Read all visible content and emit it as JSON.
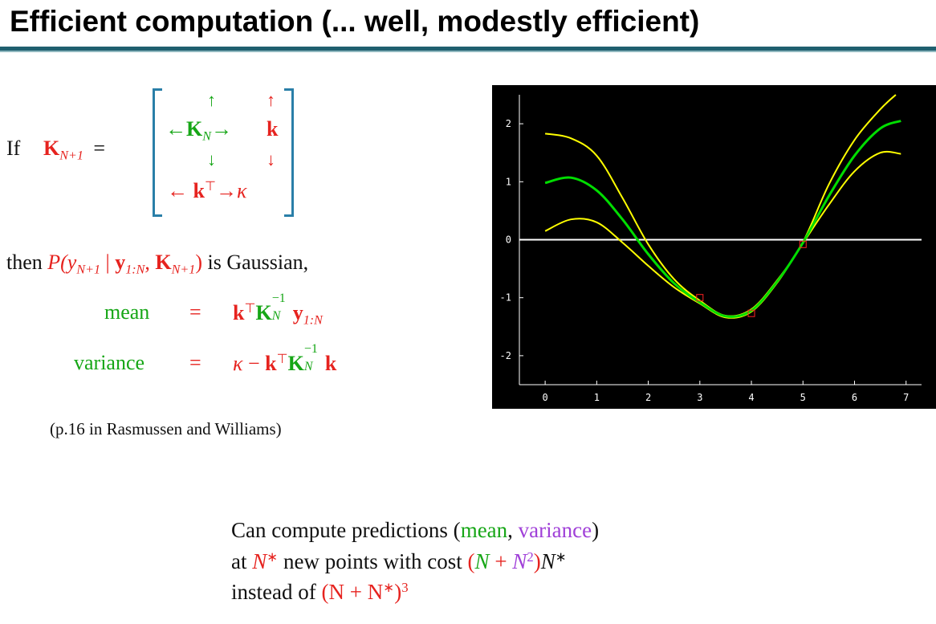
{
  "title": "Efficient computation (... well, modestly efficient)",
  "if_text": "If",
  "matrix_lhs": {
    "K": "K",
    "sub": "N+1",
    "eq": "="
  },
  "matrix": {
    "arrow_up": "↑",
    "arrow_down": "↓",
    "arrow_left": "←",
    "arrow_right": "→",
    "KN": "K",
    "KN_sub": "N",
    "k": "k",
    "kT": "k",
    "T": "⊤",
    "kappa": "κ"
  },
  "then_line": {
    "then": "then",
    "P": "P(y",
    "sub1": "N+1",
    "bar": " | ",
    "y": "y",
    "sub2": "1:N",
    "comma": ", ",
    "K": "K",
    "sub3": "N+1",
    "close": ")",
    "rest": " is Gaussian,"
  },
  "mean_line": {
    "label": "mean",
    "eq": "=",
    "k": "k",
    "T": "⊤",
    "K": "K",
    "exp": "−1",
    "sub": "N",
    "y": "y",
    "ysub": "1:N"
  },
  "variance_line": {
    "label": "variance",
    "eq": "=",
    "kappa": "κ",
    "minus": " − ",
    "k": "k",
    "T": "⊤",
    "K": "K",
    "exp": "−1",
    "sub": "N",
    "k2": "k"
  },
  "reference": "(p.16 in Rasmussen and Williams)",
  "bottom_text": {
    "line1_a": "Can compute predictions (",
    "mean": "mean",
    "comma": ", ",
    "variance": "variance",
    "line1_b": ")",
    "line2_a": "at ",
    "Nstar": "N",
    "star": "∗",
    "line2_b": " new points with cost ",
    "paren_open": "(",
    "N1": "N",
    "plus": " + ",
    "N2": "N",
    "sq": "2",
    "paren_close": ")",
    "N3": "N",
    "star2": "∗",
    "line3_a": "instead of ",
    "cost2_a": "(N + N",
    "star3": "∗",
    "cost2_b": ")",
    "cube": "3"
  },
  "chart_data": {
    "type": "line",
    "xlim": [
      -0.5,
      7.3
    ],
    "ylim": [
      -2.5,
      2.5
    ],
    "x_ticks": [
      "0",
      "1",
      "2",
      "3",
      "4",
      "5",
      "6",
      "7"
    ],
    "y_ticks": [
      "2",
      "1",
      "0",
      "-1",
      "-2"
    ],
    "grid": false,
    "colors": {
      "mean": "#00dd00",
      "bounds": "#ffff00",
      "zero": "#ffffff",
      "points": "#ff2222",
      "axis": "#ffffff"
    },
    "mean": [
      {
        "x": 0,
        "y": 0.98
      },
      {
        "x": 0.5,
        "y": 1.07
      },
      {
        "x": 1,
        "y": 0.85
      },
      {
        "x": 1.5,
        "y": 0.35
      },
      {
        "x": 2,
        "y": -0.25
      },
      {
        "x": 2.5,
        "y": -0.75
      },
      {
        "x": 3,
        "y": -1.08
      },
      {
        "x": 3.5,
        "y": -1.32
      },
      {
        "x": 4,
        "y": -1.22
      },
      {
        "x": 4.5,
        "y": -0.72
      },
      {
        "x": 5,
        "y": -0.05
      },
      {
        "x": 5.5,
        "y": 0.75
      },
      {
        "x": 6,
        "y": 1.45
      },
      {
        "x": 6.5,
        "y": 1.92
      },
      {
        "x": 6.9,
        "y": 2.05
      }
    ],
    "upper": [
      {
        "x": 0,
        "y": 1.83
      },
      {
        "x": 0.5,
        "y": 1.75
      },
      {
        "x": 1,
        "y": 1.45
      },
      {
        "x": 1.5,
        "y": 0.72
      },
      {
        "x": 2,
        "y": -0.08
      },
      {
        "x": 2.5,
        "y": -0.68
      },
      {
        "x": 3,
        "y": -1.05
      },
      {
        "x": 3.5,
        "y": -1.31
      },
      {
        "x": 4,
        "y": -1.2
      },
      {
        "x": 4.5,
        "y": -0.7
      },
      {
        "x": 5,
        "y": -0.04
      },
      {
        "x": 5.5,
        "y": 0.95
      },
      {
        "x": 6,
        "y": 1.72
      },
      {
        "x": 6.5,
        "y": 2.25
      },
      {
        "x": 6.8,
        "y": 2.5
      }
    ],
    "lower": [
      {
        "x": 0,
        "y": 0.15
      },
      {
        "x": 0.5,
        "y": 0.35
      },
      {
        "x": 1,
        "y": 0.3
      },
      {
        "x": 1.5,
        "y": -0.05
      },
      {
        "x": 2,
        "y": -0.45
      },
      {
        "x": 2.5,
        "y": -0.82
      },
      {
        "x": 3,
        "y": -1.1
      },
      {
        "x": 3.5,
        "y": -1.34
      },
      {
        "x": 4,
        "y": -1.24
      },
      {
        "x": 4.5,
        "y": -0.74
      },
      {
        "x": 5,
        "y": -0.06
      },
      {
        "x": 5.5,
        "y": 0.6
      },
      {
        "x": 6,
        "y": 1.18
      },
      {
        "x": 6.5,
        "y": 1.5
      },
      {
        "x": 6.9,
        "y": 1.48
      }
    ],
    "observations": [
      {
        "x": 3,
        "y": -1.0
      },
      {
        "x": 4,
        "y": -1.27
      },
      {
        "x": 5,
        "y": -0.08
      }
    ]
  }
}
